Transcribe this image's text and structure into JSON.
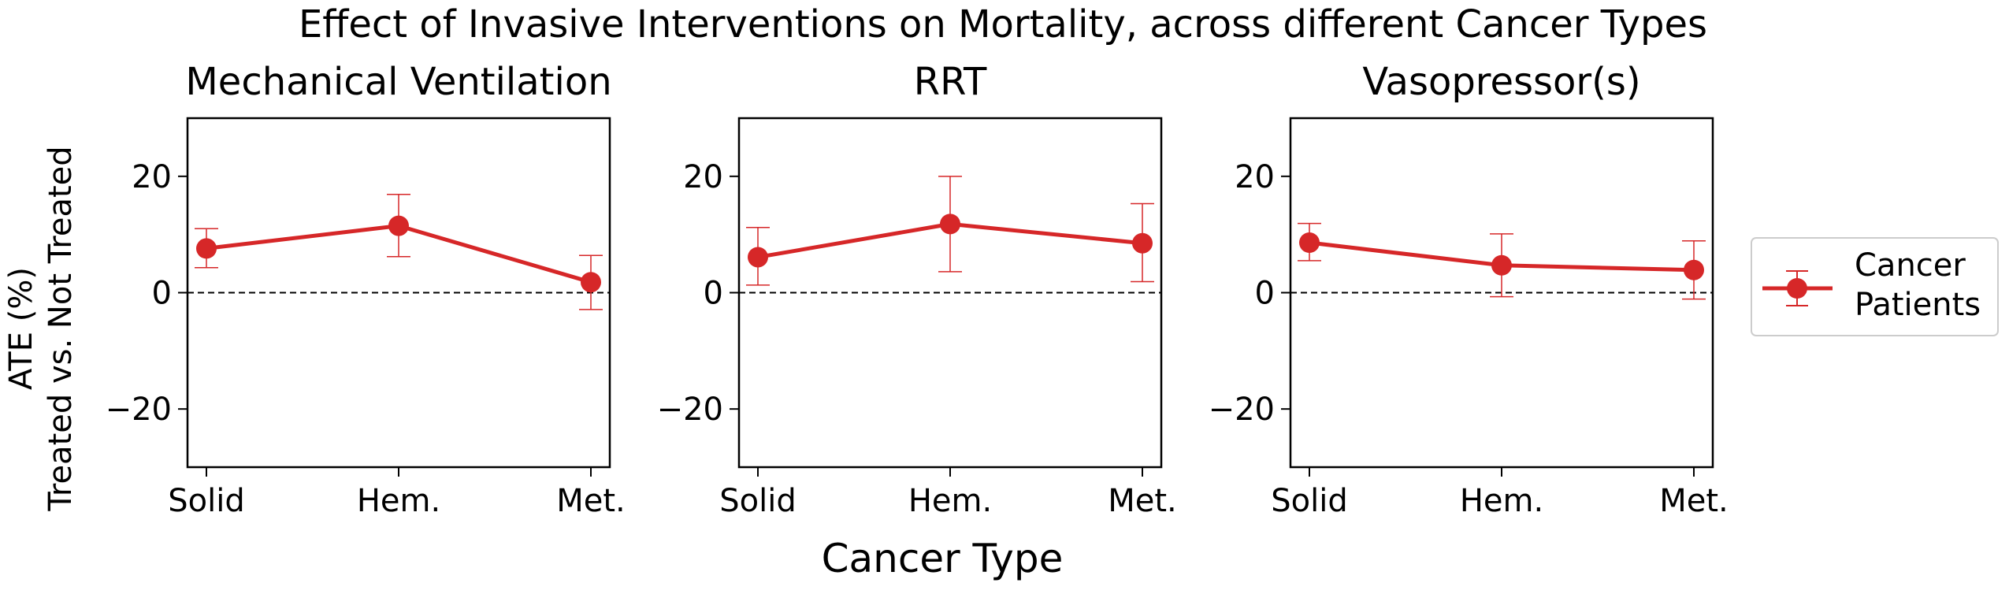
{
  "title": "Effect of Invasive Interventions on Mortality, across different Cancer Types",
  "xlabel": "Cancer Type",
  "ylabel_line1": "ATE (%)",
  "ylabel_line2": "Treated vs. Not Treated",
  "legend": {
    "label_line1": "Cancer",
    "label_line2": "Patients"
  },
  "colors": {
    "series": "#d62728",
    "reference_line": "#000000",
    "axes": "#000000"
  },
  "chart_data": [
    {
      "type": "line",
      "title": "Mechanical Ventilation",
      "categories": [
        "Solid",
        "Hem.",
        "Met."
      ],
      "series": [
        {
          "name": "Cancer Patients",
          "values": [
            7.6,
            11.5,
            1.8
          ],
          "err_low": [
            4.3,
            6.2,
            -2.9
          ],
          "err_high": [
            11.0,
            16.9,
            6.4
          ]
        }
      ],
      "ylim": [
        -30,
        30
      ],
      "yticks": [
        -20,
        0,
        20
      ],
      "ytick_labels": [
        "−20",
        "0",
        "20"
      ],
      "reference_y": 0
    },
    {
      "type": "line",
      "title": "RRT",
      "categories": [
        "Solid",
        "Hem.",
        "Met."
      ],
      "series": [
        {
          "name": "Cancer Patients",
          "values": [
            6.1,
            11.8,
            8.5
          ],
          "err_low": [
            1.3,
            3.6,
            1.9
          ],
          "err_high": [
            11.2,
            20.0,
            15.3
          ]
        }
      ],
      "ylim": [
        -30,
        30
      ],
      "yticks": [
        -20,
        0,
        20
      ],
      "ytick_labels": [
        "−20",
        "0",
        "20"
      ],
      "reference_y": 0
    },
    {
      "type": "line",
      "title": "Vasopressor(s)",
      "categories": [
        "Solid",
        "Hem.",
        "Met."
      ],
      "series": [
        {
          "name": "Cancer Patients",
          "values": [
            8.6,
            4.7,
            3.9
          ],
          "err_low": [
            5.5,
            -0.7,
            -1.1
          ],
          "err_high": [
            11.9,
            10.1,
            8.9
          ]
        }
      ],
      "ylim": [
        -30,
        30
      ],
      "yticks": [
        -20,
        0,
        20
      ],
      "ytick_labels": [
        "−20",
        "0",
        "20"
      ],
      "reference_y": 0
    }
  ]
}
